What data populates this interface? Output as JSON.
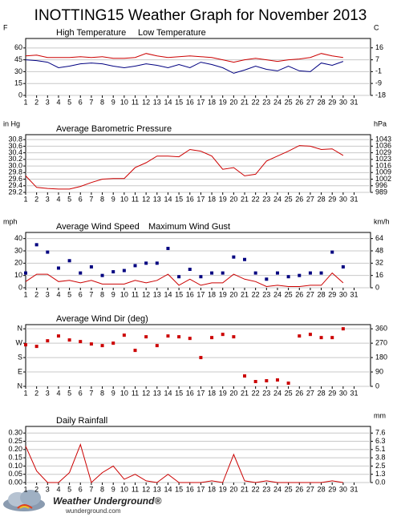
{
  "title": "INOTTING15 Weather Graph for November 2013",
  "chart_data": [
    {
      "type": "line",
      "ylabel": "F",
      "y2label": "C",
      "x": [
        1,
        2,
        3,
        4,
        5,
        6,
        7,
        8,
        9,
        10,
        11,
        12,
        13,
        14,
        15,
        16,
        17,
        18,
        19,
        20,
        21,
        22,
        23,
        24,
        25,
        26,
        27,
        28,
        29,
        30
      ],
      "xlim": [
        1,
        32.5
      ],
      "xticks": [
        1,
        2,
        3,
        4,
        5,
        6,
        7,
        8,
        9,
        10,
        11,
        12,
        13,
        14,
        15,
        16,
        17,
        18,
        19,
        20,
        21,
        22,
        23,
        24,
        25,
        26,
        27,
        28,
        29,
        30,
        31
      ],
      "ylim": [
        0,
        72
      ],
      "yticks": [
        60,
        45,
        30,
        15,
        0
      ],
      "y2lim": [
        -17.8,
        22.2
      ],
      "y2ticks": [
        {
          "value": 15.6,
          "label": "16"
        },
        {
          "value": 7.2,
          "label": "7"
        },
        {
          "value": -1.1,
          "label": "-1"
        },
        {
          "value": -9.4,
          "label": "-9"
        },
        {
          "value": -17.8,
          "label": "-18"
        }
      ],
      "grid": true,
      "series": [
        {
          "name": "High Temperature",
          "color": "#cc0000",
          "style": "line",
          "values": [
            50,
            51,
            48,
            48,
            48,
            49,
            48,
            49,
            47,
            47,
            48,
            53,
            50,
            48,
            49,
            50,
            49,
            48,
            45,
            42,
            45,
            47,
            45,
            43,
            45,
            46,
            48,
            53,
            50,
            48
          ]
        },
        {
          "name": "Low Temperature",
          "color": "#000080",
          "style": "line",
          "values": [
            45,
            44,
            42,
            35,
            37,
            40,
            41,
            40,
            37,
            35,
            37,
            40,
            38,
            35,
            39,
            35,
            42,
            39,
            35,
            28,
            32,
            37,
            33,
            31,
            37,
            31,
            30,
            41,
            38,
            43
          ]
        }
      ]
    },
    {
      "type": "line",
      "ylabel": "in Hg",
      "y2label": "hPa",
      "x": [
        1,
        2,
        3,
        4,
        5,
        6,
        7,
        8,
        9,
        10,
        11,
        12,
        13,
        14,
        15,
        16,
        17,
        18,
        19,
        20,
        21,
        22,
        23,
        24,
        25,
        26,
        27,
        28,
        29,
        30
      ],
      "xlim": [
        1,
        32.5
      ],
      "xticks": [
        1,
        2,
        3,
        4,
        5,
        6,
        7,
        8,
        9,
        10,
        11,
        12,
        13,
        14,
        15,
        16,
        17,
        18,
        19,
        20,
        21,
        22,
        23,
        24,
        25,
        26,
        27,
        28,
        29,
        30,
        31
      ],
      "ylim": [
        29.2,
        30.95
      ],
      "yticks": [
        30.8,
        30.6,
        30.4,
        30.2,
        {
          "value": 30.0,
          "label": "30.0"
        },
        29.8,
        29.6,
        29.4,
        29.2
      ],
      "y2lim": [
        988.8,
        1048.1
      ],
      "y2ticks": [
        {
          "value": 1043.0,
          "label": "1043"
        },
        {
          "value": 1036.3,
          "label": "1036"
        },
        {
          "value": 1029.5,
          "label": "1029"
        },
        {
          "value": 1022.7,
          "label": "1023"
        },
        {
          "value": 1015.9,
          "label": "1016"
        },
        {
          "value": 1009.2,
          "label": "1009"
        },
        {
          "value": 1002.4,
          "label": "1002"
        },
        {
          "value": 995.6,
          "label": "996"
        },
        {
          "value": 988.8,
          "label": "989"
        }
      ],
      "grid": true,
      "series": [
        {
          "name": "Average Barometric Pressure",
          "color": "#cc0000",
          "style": "line",
          "values": [
            29.7,
            29.35,
            29.32,
            29.3,
            29.3,
            29.38,
            29.5,
            29.6,
            29.62,
            29.62,
            29.95,
            30.1,
            30.3,
            30.3,
            30.28,
            30.5,
            30.45,
            30.3,
            29.9,
            29.95,
            29.7,
            29.75,
            30.15,
            30.3,
            30.45,
            30.62,
            30.6,
            30.5,
            30.52,
            30.32
          ]
        }
      ]
    },
    {
      "type": "line",
      "ylabel": "mph",
      "y2label": "km/h",
      "x": [
        1,
        2,
        3,
        4,
        5,
        6,
        7,
        8,
        9,
        10,
        11,
        12,
        13,
        14,
        15,
        16,
        17,
        18,
        19,
        20,
        21,
        22,
        23,
        24,
        25,
        26,
        27,
        28,
        29,
        30
      ],
      "xlim": [
        1,
        32.5
      ],
      "xticks": [
        1,
        2,
        3,
        4,
        5,
        6,
        7,
        8,
        9,
        10,
        11,
        12,
        13,
        14,
        15,
        16,
        17,
        18,
        19,
        20,
        21,
        22,
        23,
        24,
        25,
        26,
        27,
        28,
        29,
        30,
        31
      ],
      "ylim": [
        0,
        45
      ],
      "yticks": [
        40,
        30,
        20,
        10,
        0
      ],
      "y2lim": [
        0,
        72.4
      ],
      "y2ticks": [
        {
          "value": 64.4,
          "label": "64"
        },
        {
          "value": 48.3,
          "label": "48"
        },
        {
          "value": 32.2,
          "label": "32"
        },
        {
          "value": 16.1,
          "label": "16"
        },
        0
      ],
      "grid": true,
      "series": [
        {
          "name": "Average Wind Speed",
          "color": "#cc0000",
          "style": "line",
          "values": [
            5,
            11,
            11,
            5,
            6,
            4,
            6,
            3,
            3,
            3,
            6,
            4,
            6,
            11,
            2,
            7,
            2,
            4,
            4,
            11,
            7,
            5,
            1,
            2,
            1,
            1,
            2,
            2,
            12,
            4
          ]
        },
        {
          "name": "Maximum Wind Gust",
          "color": "#000080",
          "style": "markers",
          "values": [
            12,
            35,
            29,
            16,
            22,
            12,
            17,
            10,
            13,
            14,
            18,
            20,
            20,
            32,
            9,
            15,
            9,
            12,
            12,
            25,
            23,
            12,
            7,
            12,
            9,
            10,
            12,
            12,
            29,
            17
          ]
        }
      ]
    },
    {
      "type": "scatter",
      "x": [
        1,
        2,
        3,
        4,
        5,
        6,
        7,
        8,
        9,
        10,
        11,
        12,
        13,
        14,
        15,
        16,
        17,
        18,
        19,
        20,
        21,
        22,
        23,
        24,
        25,
        26,
        27,
        28,
        29,
        30
      ],
      "xlim": [
        1,
        32.5
      ],
      "xticks": [
        1,
        2,
        3,
        4,
        5,
        6,
        7,
        8,
        9,
        10,
        11,
        12,
        13,
        14,
        15,
        16,
        17,
        18,
        19,
        20,
        21,
        22,
        23,
        24,
        25,
        26,
        27,
        28,
        29,
        30,
        31
      ],
      "ylim": [
        0,
        386
      ],
      "yticks": [
        {
          "value": 360,
          "label": "N"
        },
        {
          "value": 270,
          "label": "W"
        },
        {
          "value": 180,
          "label": "S"
        },
        {
          "value": 90,
          "label": "E"
        },
        {
          "value": 0,
          "label": "N"
        }
      ],
      "ytick_color": "#cc0000",
      "y2lim": [
        0,
        386
      ],
      "y2ticks": [
        360,
        270,
        180,
        90,
        0
      ],
      "grid": true,
      "series": [
        {
          "name": "Average Wind Dir (deg)",
          "color": "#cc0000",
          "style": "markers",
          "values": [
            260,
            250,
            285,
            315,
            290,
            280,
            265,
            255,
            270,
            320,
            225,
            310,
            255,
            315,
            310,
            300,
            180,
            305,
            325,
            310,
            65,
            30,
            35,
            40,
            20,
            315,
            325,
            305,
            305,
            360
          ]
        }
      ]
    },
    {
      "type": "line",
      "y2label": "mm",
      "x": [
        1,
        2,
        3,
        4,
        5,
        6,
        7,
        8,
        9,
        10,
        11,
        12,
        13,
        14,
        15,
        16,
        17,
        18,
        19,
        20,
        21,
        22,
        23,
        24,
        25,
        26,
        27,
        28,
        29,
        30
      ],
      "xlim": [
        1,
        32.5
      ],
      "xticks": [
        1,
        2,
        3,
        4,
        5,
        6,
        7,
        8,
        9,
        10,
        11,
        12,
        13,
        14,
        15,
        16,
        17,
        18,
        19,
        20,
        21,
        22,
        23,
        24,
        25,
        26,
        27,
        28,
        29,
        30,
        31
      ],
      "ylim": [
        0,
        0.34
      ],
      "yticks": [
        {
          "value": 0.3,
          "label": "0.30"
        },
        0.25,
        {
          "value": 0.2,
          "label": "0.20"
        },
        0.15,
        {
          "value": 0.1,
          "label": "0.10"
        },
        0.05,
        {
          "value": 0,
          "label": "0.00"
        }
      ],
      "y2lim": [
        0,
        8.64
      ],
      "y2ticks": [
        {
          "value": 7.62,
          "label": "7.6"
        },
        {
          "value": 6.35,
          "label": "6.3"
        },
        {
          "value": 5.08,
          "label": "5.1"
        },
        {
          "value": 3.81,
          "label": "3.8"
        },
        {
          "value": 2.54,
          "label": "2.5"
        },
        {
          "value": 1.27,
          "label": "1.3"
        },
        {
          "value": 0,
          "label": "0.0"
        }
      ],
      "grid": true,
      "series": [
        {
          "name": "Daily Rainfall",
          "color": "#cc0000",
          "style": "line",
          "values": [
            0.22,
            0.07,
            0,
            0,
            0.06,
            0.23,
            0,
            0.06,
            0.1,
            0.02,
            0.05,
            0.01,
            0,
            0.05,
            0,
            0,
            0,
            0.01,
            0,
            0.17,
            0.01,
            0,
            0.01,
            0,
            0,
            0,
            0,
            0,
            0.01,
            0
          ]
        }
      ]
    }
  ],
  "footer": {
    "brand": "Weather Underground®",
    "site": "wunderground.com"
  }
}
